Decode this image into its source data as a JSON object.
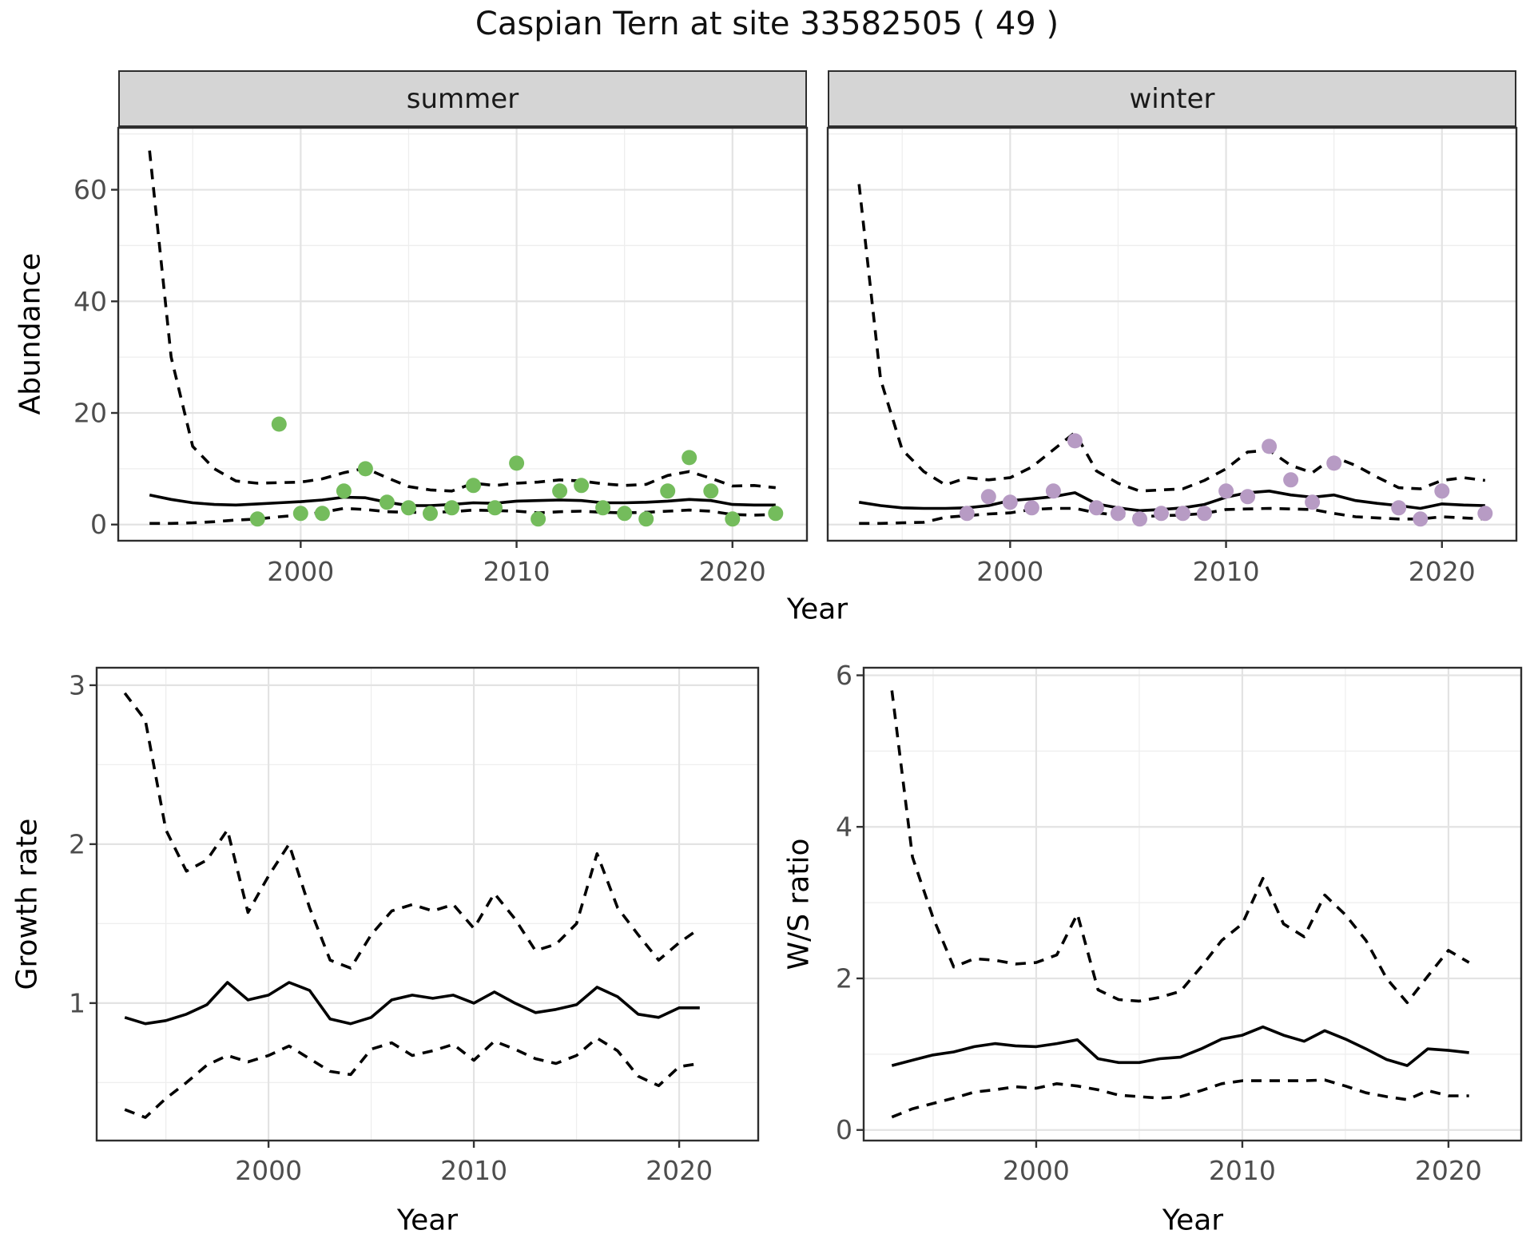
{
  "title": "Caspian Tern at site 33582505 ( 49 )",
  "colors": {
    "summer_point": "#74bc5c",
    "winter_point": "#b79bc4",
    "fit_line": "#000000",
    "ci_line": "#000000",
    "strip_bg": "#d5d5d5",
    "grid_major": "#e3e3e3",
    "grid_minor": "#eeeeee",
    "axis_text": "#4d4d4d",
    "panel_border": "#2e2e2e"
  },
  "chart_data": [
    {
      "id": "abundance-summer",
      "type": "line",
      "facet": "summer",
      "xlabel": "Year",
      "ylabel": "Abundance",
      "xlim": [
        1991.55,
        2023.45
      ],
      "ylim": [
        -2.9,
        71.1
      ],
      "xticks": [
        2000,
        2010,
        2020
      ],
      "yticks": [
        0,
        20,
        40,
        60
      ],
      "xminor": [
        1995,
        2005,
        2015
      ],
      "yminor": [
        10,
        30,
        50,
        70
      ],
      "grid": true,
      "legend": "none",
      "years": [
        1993,
        1994,
        1995,
        1996,
        1997,
        1998,
        1999,
        2000,
        2001,
        2002,
        2003,
        2004,
        2005,
        2006,
        2007,
        2008,
        2009,
        2010,
        2011,
        2012,
        2013,
        2014,
        2015,
        2016,
        2017,
        2018,
        2019,
        2020,
        2021,
        2022
      ],
      "series": [
        {
          "name": "lower-ci",
          "style": "dashed",
          "values": [
            0.2,
            0.2,
            0.3,
            0.5,
            0.8,
            1.0,
            1.4,
            1.7,
            2.2,
            2.9,
            2.7,
            2.3,
            2.2,
            2.2,
            2.3,
            2.6,
            2.5,
            2.4,
            2.1,
            2.3,
            2.4,
            2.2,
            2.1,
            2.2,
            2.4,
            2.6,
            2.4,
            1.8,
            1.7,
            1.8
          ]
        },
        {
          "name": "upper-ci",
          "style": "dashed",
          "values": [
            67,
            30,
            14,
            10,
            7.8,
            7.4,
            7.5,
            7.6,
            8.2,
            9.3,
            10.1,
            8.4,
            6.8,
            6.2,
            6.0,
            7.4,
            7.0,
            7.4,
            7.6,
            8.0,
            7.8,
            7.3,
            7.0,
            7.2,
            8.8,
            9.5,
            8.3,
            6.9,
            7.0,
            6.6
          ]
        },
        {
          "name": "fit",
          "style": "solid",
          "values": [
            5.3,
            4.5,
            3.9,
            3.6,
            3.5,
            3.7,
            3.9,
            4.1,
            4.4,
            4.9,
            4.8,
            4.0,
            3.4,
            3.4,
            3.6,
            3.9,
            3.8,
            4.2,
            4.3,
            4.4,
            4.3,
            3.9,
            3.9,
            4.0,
            4.2,
            4.5,
            4.3,
            3.6,
            3.5,
            3.5
          ]
        }
      ],
      "points": {
        "color": "#74bc5c",
        "years": [
          1998,
          1999,
          2000,
          2001,
          2002,
          2003,
          2004,
          2005,
          2006,
          2007,
          2008,
          2009,
          2010,
          2011,
          2012,
          2013,
          2014,
          2015,
          2016,
          2017,
          2018,
          2019,
          2020,
          2022
        ],
        "values": [
          1,
          18,
          2,
          2,
          6,
          10,
          4,
          3,
          2,
          3,
          7,
          3,
          11,
          1,
          6,
          7,
          3,
          2,
          1,
          6,
          12,
          6,
          1,
          2
        ]
      }
    },
    {
      "id": "abundance-winter",
      "type": "line",
      "facet": "winter",
      "xlabel": "Year",
      "ylabel": "Abundance",
      "xlim": [
        1991.55,
        2023.45
      ],
      "ylim": [
        -2.9,
        71.1
      ],
      "xticks": [
        2000,
        2010,
        2020
      ],
      "yticks": [
        0,
        20,
        40,
        60
      ],
      "xminor": [
        1995,
        2005,
        2015
      ],
      "yminor": [
        10,
        30,
        50,
        70
      ],
      "grid": true,
      "legend": "none",
      "years": [
        1993,
        1994,
        1995,
        1996,
        1997,
        1998,
        1999,
        2000,
        2001,
        2002,
        2003,
        2004,
        2005,
        2006,
        2007,
        2008,
        2009,
        2010,
        2011,
        2012,
        2013,
        2014,
        2015,
        2016,
        2017,
        2018,
        2019,
        2020,
        2021,
        2022
      ],
      "series": [
        {
          "name": "lower-ci",
          "style": "dashed",
          "values": [
            0.2,
            0.2,
            0.3,
            0.4,
            1.3,
            1.6,
            1.9,
            2.1,
            2.7,
            2.9,
            2.9,
            2.1,
            1.7,
            1.4,
            1.6,
            1.7,
            2.0,
            2.7,
            2.8,
            2.9,
            2.8,
            2.7,
            2.0,
            1.4,
            1.2,
            1.0,
            1.0,
            1.4,
            1.2,
            1.0
          ]
        },
        {
          "name": "upper-ci",
          "style": "dashed",
          "values": [
            61,
            26,
            13.4,
            9.5,
            7.1,
            8.4,
            8.0,
            8.4,
            10.3,
            13.4,
            16.5,
            9.6,
            7.4,
            6.0,
            6.2,
            6.4,
            7.9,
            10.0,
            13.0,
            13.3,
            10.6,
            9.3,
            12.1,
            10.6,
            8.5,
            6.6,
            6.4,
            7.9,
            8.4,
            7.9
          ]
        },
        {
          "name": "fit",
          "style": "solid",
          "values": [
            4.0,
            3.4,
            3.0,
            2.9,
            2.9,
            3.0,
            3.4,
            4.3,
            4.6,
            5.0,
            5.7,
            3.7,
            3.0,
            2.5,
            2.7,
            3.0,
            3.6,
            4.9,
            5.7,
            6.0,
            5.3,
            4.9,
            5.3,
            4.3,
            3.8,
            3.4,
            2.9,
            3.7,
            3.5,
            3.4
          ]
        }
      ],
      "points": {
        "color": "#b79bc4",
        "years": [
          1998,
          1999,
          2000,
          2001,
          2002,
          2003,
          2004,
          2005,
          2006,
          2007,
          2008,
          2009,
          2010,
          2011,
          2012,
          2013,
          2014,
          2015,
          2018,
          2019,
          2020,
          2022
        ],
        "values": [
          2,
          5,
          4,
          3,
          6,
          15,
          3,
          2,
          1,
          2,
          2,
          2,
          6,
          5,
          14,
          8,
          4,
          11,
          3,
          1,
          6,
          2
        ]
      }
    },
    {
      "id": "growth-rate",
      "type": "line",
      "facet": "",
      "xlabel": "Year",
      "ylabel": "Growth rate",
      "xlim": [
        1991.63,
        2023.85
      ],
      "ylim": [
        0.135,
        3.11
      ],
      "xticks": [
        2000,
        2010,
        2020
      ],
      "yticks": [
        1,
        2,
        3
      ],
      "xminor": [
        1995,
        2005,
        2015
      ],
      "yminor": [
        0.5,
        1.5,
        2.5
      ],
      "grid": true,
      "legend": "none",
      "years": [
        1993,
        1994,
        1995,
        1996,
        1997,
        1998,
        1999,
        2000,
        2001,
        2002,
        2003,
        2004,
        2005,
        2006,
        2007,
        2008,
        2009,
        2010,
        2011,
        2012,
        2013,
        2014,
        2015,
        2016,
        2017,
        2018,
        2019,
        2020,
        2021
      ],
      "series": [
        {
          "name": "lower-ci",
          "style": "dashed",
          "values": [
            0.33,
            0.28,
            0.4,
            0.5,
            0.61,
            0.67,
            0.63,
            0.67,
            0.73,
            0.65,
            0.57,
            0.55,
            0.71,
            0.75,
            0.67,
            0.7,
            0.74,
            0.64,
            0.76,
            0.71,
            0.65,
            0.62,
            0.67,
            0.78,
            0.7,
            0.54,
            0.48,
            0.6,
            0.62
          ]
        },
        {
          "name": "upper-ci",
          "style": "dashed",
          "values": [
            2.95,
            2.78,
            2.09,
            1.83,
            1.9,
            2.09,
            1.57,
            1.8,
            2.0,
            1.6,
            1.27,
            1.22,
            1.43,
            1.58,
            1.62,
            1.58,
            1.62,
            1.47,
            1.69,
            1.53,
            1.33,
            1.37,
            1.5,
            1.94,
            1.6,
            1.43,
            1.27,
            1.38,
            1.47
          ]
        },
        {
          "name": "fit",
          "style": "solid",
          "values": [
            0.91,
            0.87,
            0.89,
            0.93,
            0.99,
            1.13,
            1.02,
            1.05,
            1.13,
            1.08,
            0.9,
            0.87,
            0.91,
            1.02,
            1.05,
            1.03,
            1.05,
            1.0,
            1.07,
            1.0,
            0.94,
            0.96,
            0.99,
            1.1,
            1.04,
            0.93,
            0.91,
            0.97,
            0.97
          ]
        }
      ],
      "points": null
    },
    {
      "id": "ws-ratio",
      "type": "line",
      "facet": "",
      "xlabel": "Year",
      "ylabel": "W/S ratio",
      "xlim": [
        1991.63,
        2023.53
      ],
      "ylim": [
        -0.14,
        6.1
      ],
      "xticks": [
        2000,
        2010,
        2020
      ],
      "yticks": [
        0,
        2,
        4,
        6
      ],
      "xminor": [
        1995,
        2005,
        2015
      ],
      "yminor": [
        1,
        3,
        5
      ],
      "grid": true,
      "legend": "none",
      "years": [
        1993,
        1994,
        1995,
        1996,
        1997,
        1998,
        1999,
        2000,
        2001,
        2002,
        2003,
        2004,
        2005,
        2006,
        2007,
        2008,
        2009,
        2010,
        2011,
        2012,
        2013,
        2014,
        2015,
        2016,
        2017,
        2018,
        2019,
        2020,
        2021
      ],
      "series": [
        {
          "name": "lower-ci",
          "style": "dashed",
          "values": [
            0.17,
            0.28,
            0.35,
            0.42,
            0.5,
            0.53,
            0.57,
            0.55,
            0.61,
            0.58,
            0.53,
            0.46,
            0.44,
            0.42,
            0.44,
            0.52,
            0.61,
            0.65,
            0.65,
            0.65,
            0.65,
            0.66,
            0.58,
            0.49,
            0.44,
            0.4,
            0.52,
            0.45,
            0.45
          ]
        },
        {
          "name": "upper-ci",
          "style": "dashed",
          "values": [
            5.8,
            3.6,
            2.8,
            2.15,
            2.26,
            2.24,
            2.19,
            2.21,
            2.31,
            2.85,
            1.85,
            1.72,
            1.7,
            1.75,
            1.83,
            2.15,
            2.5,
            2.72,
            3.32,
            2.72,
            2.55,
            3.1,
            2.84,
            2.5,
            2.0,
            1.68,
            2.03,
            2.37,
            2.21
          ]
        },
        {
          "name": "fit",
          "style": "solid",
          "values": [
            0.85,
            0.92,
            0.99,
            1.03,
            1.1,
            1.14,
            1.11,
            1.1,
            1.14,
            1.19,
            0.94,
            0.89,
            0.89,
            0.94,
            0.96,
            1.07,
            1.2,
            1.25,
            1.36,
            1.25,
            1.17,
            1.31,
            1.2,
            1.07,
            0.93,
            0.85,
            1.07,
            1.05,
            1.02
          ]
        }
      ],
      "points": null
    }
  ]
}
